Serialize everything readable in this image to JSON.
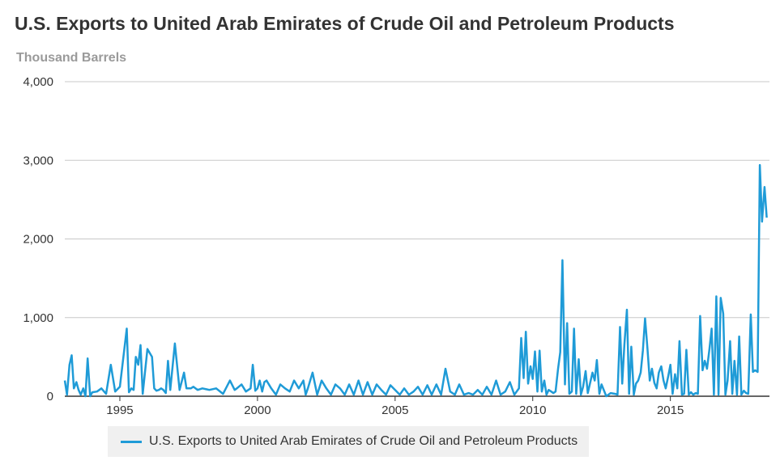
{
  "chart_data": {
    "type": "line",
    "title": "U.S. Exports to United Arab Emirates of Crude Oil and Petroleum Products",
    "ylabel": "Thousand Barrels",
    "xlabel": "",
    "y_ticks": [
      "0",
      "1,000",
      "2,000",
      "3,000",
      "4,000"
    ],
    "x_ticks": [
      "1995",
      "2000",
      "2005",
      "2010",
      "2015"
    ],
    "ylim": [
      0,
      4000
    ],
    "xlim": [
      1993.0,
      2018.6
    ],
    "grid": "horizontal",
    "legend_position": "bottom",
    "series": [
      {
        "name": "U.S. Exports to United Arab Emirates of Crude Oil and Petroleum Products",
        "color": "#1f9bd7",
        "x": [
          1993.0,
          1993.08,
          1993.17,
          1993.25,
          1993.33,
          1993.42,
          1993.5,
          1993.58,
          1993.67,
          1993.75,
          1993.83,
          1993.92,
          1994.0,
          1994.17,
          1994.33,
          1994.5,
          1994.67,
          1994.83,
          1995.0,
          1995.25,
          1995.33,
          1995.42,
          1995.5,
          1995.58,
          1995.67,
          1995.75,
          1995.83,
          1996.0,
          1996.17,
          1996.25,
          1996.33,
          1996.42,
          1996.5,
          1996.58,
          1996.67,
          1996.75,
          1996.83,
          1997.0,
          1997.17,
          1997.33,
          1997.42,
          1997.5,
          1997.58,
          1997.67,
          1997.75,
          1997.83,
          1998.0,
          1998.25,
          1998.5,
          1998.75,
          1999.0,
          1999.17,
          1999.25,
          1999.42,
          1999.58,
          1999.75,
          1999.83,
          1999.92,
          2000.0,
          2000.08,
          2000.17,
          2000.25,
          2000.33,
          2000.5,
          2000.67,
          2000.83,
          2001.0,
          2001.17,
          2001.33,
          2001.5,
          2001.67,
          2001.75,
          2001.83,
          2002.0,
          2002.17,
          2002.33,
          2002.5,
          2002.67,
          2002.83,
          2003.0,
          2003.17,
          2003.33,
          2003.5,
          2003.67,
          2003.83,
          2004.0,
          2004.17,
          2004.33,
          2004.5,
          2004.67,
          2004.83,
          2005.0,
          2005.17,
          2005.33,
          2005.5,
          2005.67,
          2005.83,
          2006.0,
          2006.17,
          2006.33,
          2006.5,
          2006.67,
          2006.83,
          2007.0,
          2007.17,
          2007.33,
          2007.5,
          2007.67,
          2007.83,
          2008.0,
          2008.17,
          2008.33,
          2008.5,
          2008.67,
          2008.83,
          2009.0,
          2009.17,
          2009.33,
          2009.5,
          2009.58,
          2009.67,
          2009.75,
          2009.83,
          2009.92,
          2010.0,
          2010.08,
          2010.17,
          2010.25,
          2010.33,
          2010.42,
          2010.5,
          2010.58,
          2010.67,
          2010.75,
          2010.83,
          2010.92,
          2011.0,
          2011.08,
          2011.17,
          2011.25,
          2011.33,
          2011.42,
          2011.5,
          2011.58,
          2011.67,
          2011.75,
          2011.83,
          2011.92,
          2012.0,
          2012.17,
          2012.25,
          2012.33,
          2012.42,
          2012.5,
          2012.67,
          2012.83,
          2013.0,
          2013.08,
          2013.17,
          2013.25,
          2013.33,
          2013.42,
          2013.5,
          2013.58,
          2013.67,
          2013.75,
          2013.83,
          2013.92,
          2014.0,
          2014.08,
          2014.17,
          2014.25,
          2014.33,
          2014.42,
          2014.5,
          2014.58,
          2014.67,
          2014.75,
          2014.83,
          2014.92,
          2015.0,
          2015.08,
          2015.17,
          2015.25,
          2015.33,
          2015.42,
          2015.5,
          2015.58,
          2015.67,
          2015.75,
          2015.83,
          2015.92,
          2016.0,
          2016.08,
          2016.17,
          2016.25,
          2016.33,
          2016.42,
          2016.5,
          2016.58,
          2016.67,
          2016.75,
          2016.83,
          2016.92,
          2017.0,
          2017.08,
          2017.17,
          2017.25,
          2017.33,
          2017.42,
          2017.5,
          2017.58,
          2017.67,
          2017.75,
          2017.83,
          2017.92,
          2018.0,
          2018.08,
          2018.17,
          2018.25,
          2018.33,
          2018.42,
          2018.5
        ],
        "values": [
          200,
          20,
          400,
          520,
          100,
          180,
          80,
          20,
          100,
          0,
          480,
          0,
          50,
          60,
          100,
          30,
          400,
          60,
          120,
          860,
          50,
          100,
          80,
          500,
          400,
          650,
          30,
          600,
          500,
          100,
          70,
          80,
          100,
          80,
          40,
          450,
          80,
          670,
          80,
          300,
          100,
          100,
          100,
          120,
          100,
          80,
          100,
          80,
          100,
          30,
          200,
          80,
          100,
          150,
          60,
          100,
          400,
          70,
          100,
          200,
          60,
          180,
          200,
          100,
          20,
          150,
          100,
          60,
          200,
          100,
          200,
          20,
          100,
          300,
          20,
          200,
          100,
          20,
          150,
          100,
          20,
          150,
          20,
          200,
          20,
          180,
          20,
          150,
          80,
          20,
          140,
          80,
          20,
          100,
          20,
          60,
          120,
          20,
          140,
          20,
          150,
          20,
          350,
          60,
          20,
          150,
          20,
          40,
          20,
          80,
          20,
          120,
          20,
          200,
          20,
          60,
          180,
          20,
          100,
          740,
          230,
          820,
          160,
          380,
          220,
          570,
          60,
          580,
          60,
          200,
          20,
          80,
          60,
          40,
          60,
          350,
          560,
          1730,
          150,
          930,
          30,
          60,
          860,
          30,
          470,
          20,
          120,
          320,
          40,
          300,
          200,
          460,
          30,
          150,
          0,
          40,
          30,
          20,
          880,
          160,
          660,
          1100,
          30,
          630,
          20,
          160,
          200,
          300,
          580,
          990,
          600,
          200,
          350,
          170,
          100,
          300,
          380,
          200,
          100,
          250,
          400,
          30,
          280,
          100,
          700,
          20,
          30,
          590,
          20,
          50,
          20,
          40,
          30,
          1020,
          330,
          450,
          350,
          600,
          860,
          20,
          1270,
          20,
          1250,
          1050,
          20,
          200,
          700,
          30,
          450,
          20,
          760,
          20,
          70,
          40,
          30,
          1040,
          310,
          330,
          310,
          2940,
          2220,
          2660,
          2270
        ]
      }
    ]
  }
}
